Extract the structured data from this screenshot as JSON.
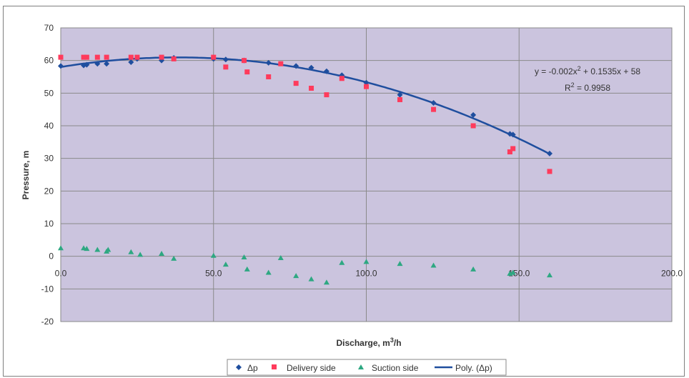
{
  "chart_data": {
    "type": "scatter",
    "title": "",
    "xlabel": "Discharge, m",
    "xlabel_sup": "3",
    "xlabel_suffix": "/h",
    "ylabel": "Pressure, m",
    "xlim": [
      0,
      200
    ],
    "ylim": [
      -20,
      70
    ],
    "x_ticks": [
      "0.0",
      "50.0",
      "100.0",
      "150.0",
      "200.0"
    ],
    "x_tick_values": [
      0,
      50,
      100,
      150,
      200
    ],
    "y_ticks": [
      "-20",
      "-10",
      "0",
      "10",
      "20",
      "30",
      "40",
      "50",
      "60",
      "70"
    ],
    "y_tick_values": [
      -20,
      -10,
      0,
      10,
      20,
      30,
      40,
      50,
      60,
      70
    ],
    "grid": true,
    "legend_position": "bottom",
    "plot_background": "#cbc4de",
    "series": [
      {
        "name": "Δp",
        "marker": "diamond",
        "color": "#1f4e9e",
        "points": [
          [
            0,
            58.3
          ],
          [
            7.5,
            58.5
          ],
          [
            8.5,
            58.7
          ],
          [
            12,
            59
          ],
          [
            15,
            59
          ],
          [
            23,
            59.5
          ],
          [
            25,
            60.5
          ],
          [
            33,
            60
          ],
          [
            37,
            60.8
          ],
          [
            50,
            60.5
          ],
          [
            54,
            60.3
          ],
          [
            60,
            60
          ],
          [
            68,
            59.3
          ],
          [
            77,
            58.3
          ],
          [
            82,
            57.8
          ],
          [
            87,
            56.7
          ],
          [
            92,
            55.5
          ],
          [
            100,
            53.2
          ],
          [
            111,
            49.5
          ],
          [
            122,
            47
          ],
          [
            135,
            43.3
          ],
          [
            147,
            37.5
          ],
          [
            148,
            37.3
          ],
          [
            160,
            31.5
          ]
        ]
      },
      {
        "name": "Delivery side",
        "marker": "square",
        "color": "#ff3b5c",
        "points": [
          [
            0,
            61
          ],
          [
            7.5,
            61
          ],
          [
            8.5,
            61
          ],
          [
            12,
            61
          ],
          [
            15,
            61
          ],
          [
            23,
            61
          ],
          [
            25,
            61
          ],
          [
            33,
            61
          ],
          [
            37,
            60.5
          ],
          [
            50,
            61
          ],
          [
            54,
            58
          ],
          [
            60,
            60
          ],
          [
            61,
            56.5
          ],
          [
            68,
            55
          ],
          [
            72,
            59
          ],
          [
            77,
            53
          ],
          [
            82,
            51.5
          ],
          [
            87,
            49.5
          ],
          [
            92,
            54.5
          ],
          [
            100,
            52
          ],
          [
            111,
            48
          ],
          [
            122,
            45
          ],
          [
            135,
            40
          ],
          [
            147,
            32
          ],
          [
            148,
            33
          ],
          [
            160,
            26
          ]
        ]
      },
      {
        "name": "Suction side",
        "marker": "triangle",
        "color": "#2ea882",
        "points": [
          [
            0,
            2.5
          ],
          [
            7.5,
            2.5
          ],
          [
            8.5,
            2.3
          ],
          [
            12,
            2
          ],
          [
            15,
            1.5
          ],
          [
            15.5,
            2
          ],
          [
            23,
            1.3
          ],
          [
            26,
            0.5
          ],
          [
            33,
            0.8
          ],
          [
            37,
            -0.7
          ],
          [
            50,
            0.2
          ],
          [
            54,
            -2.5
          ],
          [
            60,
            -0.3
          ],
          [
            61,
            -4
          ],
          [
            68,
            -5
          ],
          [
            72,
            -0.5
          ],
          [
            77,
            -6
          ],
          [
            82,
            -7
          ],
          [
            87,
            -8
          ],
          [
            92,
            -2
          ],
          [
            100,
            -1.7
          ],
          [
            111,
            -2.3
          ],
          [
            122,
            -2.8
          ],
          [
            135,
            -4
          ],
          [
            147,
            -5.3
          ],
          [
            148,
            -5
          ],
          [
            160,
            -5.8
          ]
        ]
      }
    ],
    "trendline": {
      "name": "Poly. (Δp)",
      "color": "#1f4e9e",
      "type": "polynomial",
      "coefficients": {
        "a": -0.002,
        "b": 0.1535,
        "c": 58
      },
      "x_range": [
        0,
        160
      ]
    },
    "annotation": {
      "equation_prefix": "y = -0.002x",
      "equation_sup": "2",
      "equation_suffix": " + 0.1535x + 58",
      "r2_prefix": "R",
      "r2_sup": "2",
      "r2_suffix": " = 0.9958"
    }
  }
}
